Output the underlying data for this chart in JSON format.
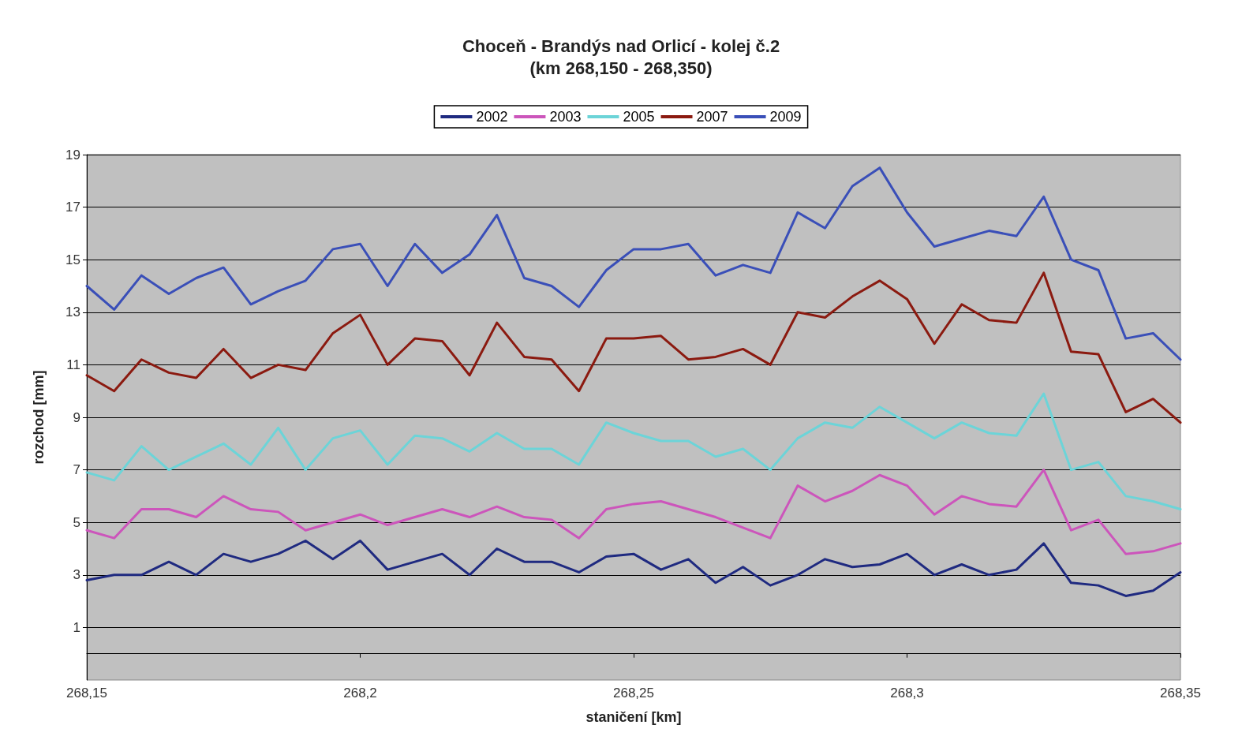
{
  "chart_data": {
    "type": "line",
    "title": "Choceň - Brandýs nad Orlicí - kolej č.2",
    "subtitle": "(km 268,150 - 268,350)",
    "xlabel": "staničení [km]",
    "ylabel": "rozchod [mm]",
    "x": [
      268.15,
      268.155,
      268.16,
      268.165,
      268.17,
      268.175,
      268.18,
      268.185,
      268.19,
      268.195,
      268.2,
      268.205,
      268.21,
      268.215,
      268.22,
      268.225,
      268.23,
      268.235,
      268.24,
      268.245,
      268.25,
      268.255,
      268.26,
      268.265,
      268.27,
      268.275,
      268.28,
      268.285,
      268.29,
      268.295,
      268.3,
      268.305,
      268.31,
      268.315,
      268.32,
      268.325,
      268.33,
      268.335,
      268.34,
      268.345,
      268.35
    ],
    "series": [
      {
        "name": "2002",
        "color": "#1f2a80",
        "values": [
          2.8,
          3.0,
          3.0,
          3.5,
          3.0,
          3.8,
          3.5,
          3.8,
          4.3,
          3.6,
          4.3,
          3.2,
          3.5,
          3.8,
          3.0,
          4.0,
          3.5,
          3.5,
          3.1,
          3.7,
          3.8,
          3.2,
          3.6,
          2.7,
          3.3,
          2.6,
          3.0,
          3.6,
          3.3,
          3.4,
          3.8,
          3.0,
          3.4,
          3.0,
          3.2,
          4.2,
          2.7,
          2.6,
          2.2,
          2.4,
          3.1
        ]
      },
      {
        "name": "2003",
        "color": "#cc55bb",
        "values": [
          4.7,
          4.4,
          5.5,
          5.5,
          5.2,
          6.0,
          5.5,
          5.4,
          4.7,
          5.0,
          5.3,
          4.9,
          5.2,
          5.5,
          5.2,
          5.6,
          5.2,
          5.1,
          4.4,
          5.5,
          5.7,
          5.8,
          5.5,
          5.2,
          4.8,
          4.4,
          6.4,
          5.8,
          6.2,
          6.8,
          6.4,
          5.3,
          6.0,
          5.7,
          5.6,
          7.0,
          4.7,
          5.1,
          3.8,
          3.9,
          4.2
        ]
      },
      {
        "name": "2005",
        "color": "#6cd4d8",
        "values": [
          6.9,
          6.6,
          7.9,
          7.0,
          7.5,
          8.0,
          7.2,
          8.6,
          7.0,
          8.2,
          8.5,
          7.2,
          8.3,
          8.2,
          7.7,
          8.4,
          7.8,
          7.8,
          7.2,
          8.8,
          8.4,
          8.1,
          8.1,
          7.5,
          7.8,
          7.0,
          8.2,
          8.8,
          8.6,
          9.4,
          8.8,
          8.2,
          8.8,
          8.4,
          8.3,
          9.9,
          7.0,
          7.3,
          6.0,
          5.8,
          5.5
        ]
      },
      {
        "name": "2007",
        "color": "#8b1a10",
        "values": [
          10.6,
          10.0,
          11.2,
          10.7,
          10.5,
          11.6,
          10.5,
          11.0,
          10.8,
          12.2,
          12.9,
          11.0,
          12.0,
          11.9,
          10.6,
          12.6,
          11.3,
          11.2,
          10.0,
          12.0,
          12.0,
          12.1,
          11.2,
          11.3,
          11.6,
          11.0,
          13.0,
          12.8,
          13.6,
          14.2,
          13.5,
          11.8,
          13.3,
          12.7,
          12.6,
          14.5,
          11.5,
          11.4,
          9.2,
          9.7,
          8.8
        ]
      },
      {
        "name": "2009",
        "color": "#3a4fb8",
        "values": [
          14.0,
          13.1,
          14.4,
          13.7,
          14.3,
          14.7,
          13.3,
          13.8,
          14.2,
          15.4,
          15.6,
          14.0,
          15.6,
          14.5,
          15.2,
          16.7,
          14.3,
          14.0,
          13.2,
          14.6,
          15.4,
          15.4,
          15.6,
          14.4,
          14.8,
          14.5,
          16.8,
          16.2,
          17.8,
          18.5,
          16.8,
          15.5,
          15.8,
          16.1,
          15.9,
          17.4,
          15.0,
          14.6,
          12.0,
          12.2,
          11.2
        ]
      }
    ],
    "xlim": [
      268.15,
      268.35
    ],
    "xticks": [
      {
        "value": 268.15,
        "label": "268,15"
      },
      {
        "value": 268.2,
        "label": "268,2"
      },
      {
        "value": 268.25,
        "label": "268,25"
      },
      {
        "value": 268.3,
        "label": "268,3"
      },
      {
        "value": 268.35,
        "label": "268,35"
      }
    ],
    "ylim": [
      -1,
      19
    ],
    "yticks": [
      1,
      3,
      5,
      7,
      9,
      11,
      13,
      15,
      17,
      19
    ],
    "grid": "y",
    "legend": "top",
    "marker": "none",
    "line_style": "solid"
  }
}
